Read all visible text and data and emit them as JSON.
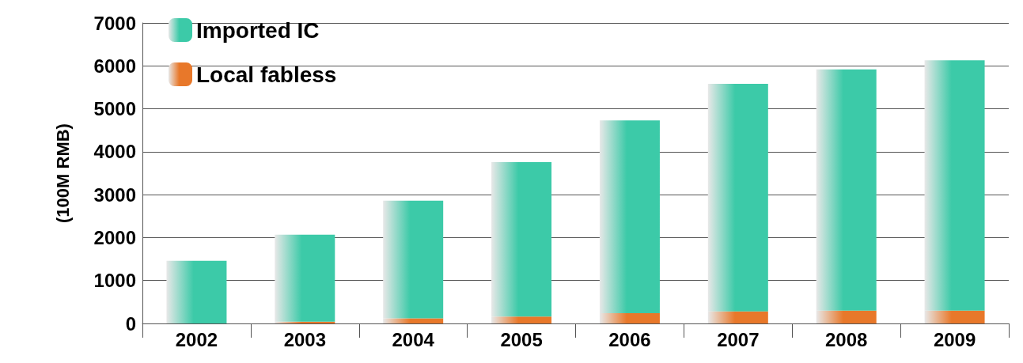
{
  "chart_data": {
    "type": "bar",
    "stacked": true,
    "ylabel": "(100M RMB)",
    "categories": [
      "2002",
      "2003",
      "2004",
      "2005",
      "2006",
      "2007",
      "2008",
      "2009"
    ],
    "series": [
      {
        "name": "Local fabless",
        "color": "#e8782a",
        "values": [
          null,
          40,
          120,
          160,
          240,
          280,
          300,
          300
        ]
      },
      {
        "name": "Imported IC",
        "color": "#3ccaa8",
        "values": [
          1460,
          2030,
          2740,
          3600,
          4490,
          5300,
          5620,
          5830
        ]
      }
    ],
    "ylim": [
      0,
      7000
    ],
    "yticks": [
      0,
      1000,
      2000,
      3000,
      4000,
      5000,
      6000,
      7000
    ],
    "grid": "y",
    "legend": "top left"
  }
}
